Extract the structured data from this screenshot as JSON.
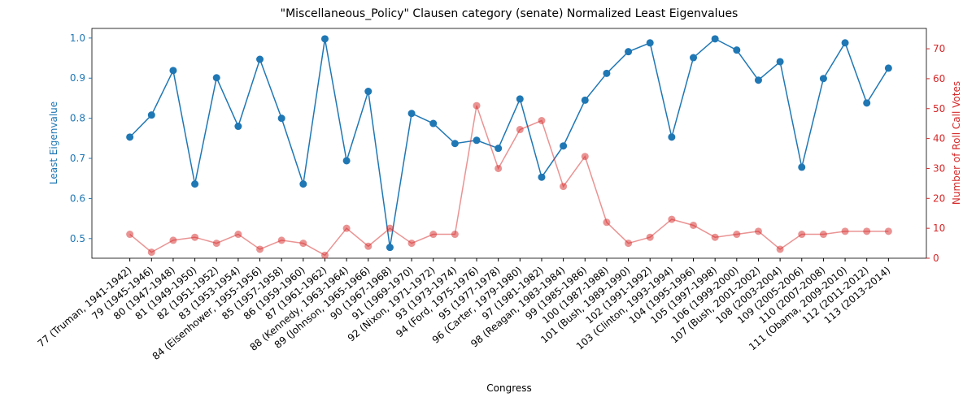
{
  "chart_data": {
    "type": "line",
    "title": "\"Miscellaneous_Policy\" Clausen category (senate) Normalized Least Eigenvalues",
    "xlabel": "Congress",
    "ylabel": "Least Eigenvalue",
    "y2label": "Number of Roll Call Votes",
    "categories": [
      "77 (Truman, 1941-1942)",
      "79 (1945-1946)",
      "80 (1947-1948)",
      "81 (1949-1950)",
      "82 (1951-1952)",
      "83 (1953-1954)",
      "84 (Eisenhower, 1955-1956)",
      "85 (1957-1958)",
      "86 (1959-1960)",
      "87 (1961-1962)",
      "88 (Kennedy, 1963-1964)",
      "89 (Johnson, 1965-1966)",
      "90 (1967-1968)",
      "91 (1969-1970)",
      "92 (Nixon, 1971-1972)",
      "93 (1973-1974)",
      "94 (Ford, 1975-1976)",
      "95 (1977-1978)",
      "96 (Carter, 1979-1980)",
      "97 (1981-1982)",
      "98 (Reagan, 1983-1984)",
      "99 (1985-1986)",
      "100 (1987-1988)",
      "101 (Bush, 1989-1990)",
      "102 (1991-1992)",
      "103 (Clinton, 1993-1994)",
      "104 (1995-1996)",
      "105 (1997-1998)",
      "106 (1999-2000)",
      "107 (Bush, 2001-2002)",
      "108 (2003-2004)",
      "109 (2005-2006)",
      "110 (2007-2008)",
      "111 (Obama, 2009-2010)",
      "112 (2011-2012)",
      "113 (2013-2014)"
    ],
    "series": [
      {
        "color": "#1f77b4",
        "alpha": 1,
        "values": [
          0.753,
          0.808,
          0.919,
          0.636,
          0.901,
          0.78,
          0.947,
          0.8,
          0.636,
          0.998,
          0.694,
          0.867,
          0.478,
          0.812,
          0.787,
          0.737,
          0.745,
          0.725,
          0.848,
          0.653,
          0.731,
          0.845,
          0.912,
          0.966,
          0.988,
          0.753,
          0.951,
          0.998,
          0.97,
          0.895,
          0.941,
          0.678,
          0.899,
          0.988,
          0.838,
          0.925
        ]
      },
      {
        "color": "#d62728",
        "alpha": 0.5,
        "axis": "y2",
        "values": [
          8,
          2,
          6,
          7,
          5,
          8,
          3,
          6,
          5,
          1,
          10,
          4,
          10,
          5,
          8,
          8,
          51,
          30,
          43,
          46,
          24,
          34,
          12,
          5,
          7,
          13,
          11,
          7,
          8,
          9,
          3,
          8,
          8,
          9,
          9,
          9
        ]
      }
    ],
    "ylim": [
      0.451,
      1.024
    ],
    "yticks": [
      0.5,
      0.6,
      0.7,
      0.8,
      0.9,
      {
        "value": 1.0,
        "label": "1.0"
      }
    ],
    "y2lim": [
      0,
      76.8
    ],
    "y2ticks": [
      0,
      10,
      20,
      30,
      40,
      50,
      60,
      70
    ],
    "grid": false
  }
}
